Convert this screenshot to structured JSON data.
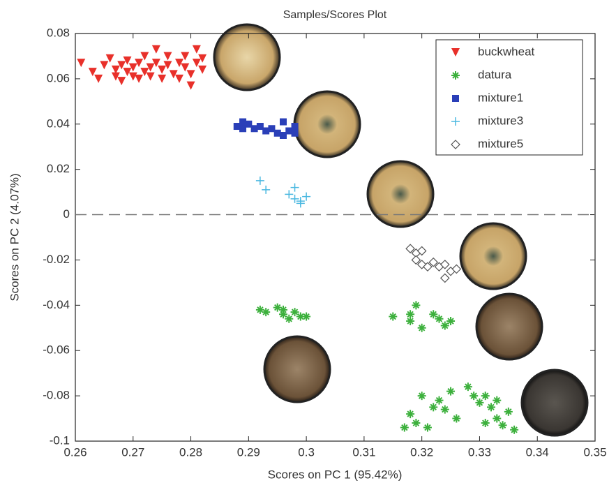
{
  "chart_data": {
    "type": "scatter",
    "title": "Samples/Scores Plot",
    "x_label": "Scores on PC 1 (95.42%)",
    "y_label": "Scores on PC 2 (4.07%)",
    "xlim": [
      0.26,
      0.35
    ],
    "ylim": [
      -0.1,
      0.08
    ],
    "xticks": [
      0.26,
      0.27,
      0.28,
      0.29,
      0.3,
      0.31,
      0.32,
      0.33,
      0.34,
      0.35
    ],
    "yticks": [
      -0.1,
      -0.08,
      -0.06,
      -0.04,
      -0.02,
      0,
      0.02,
      0.04,
      0.06,
      0.08
    ],
    "zero_line": true,
    "legend": "upper right",
    "series": [
      {
        "name": "buckwheat",
        "color": "#e8302a",
        "marker": "triangle-down",
        "x": [
          0.261,
          0.263,
          0.264,
          0.265,
          0.266,
          0.267,
          0.267,
          0.268,
          0.268,
          0.269,
          0.269,
          0.27,
          0.27,
          0.271,
          0.271,
          0.272,
          0.272,
          0.273,
          0.273,
          0.274,
          0.274,
          0.275,
          0.275,
          0.276,
          0.276,
          0.277,
          0.278,
          0.278,
          0.279,
          0.279,
          0.28,
          0.28,
          0.281,
          0.281,
          0.282,
          0.282
        ],
        "values": [
          0.067,
          0.063,
          0.06,
          0.066,
          0.069,
          0.064,
          0.061,
          0.066,
          0.059,
          0.063,
          0.068,
          0.061,
          0.065,
          0.067,
          0.06,
          0.063,
          0.07,
          0.065,
          0.061,
          0.073,
          0.067,
          0.064,
          0.06,
          0.07,
          0.066,
          0.062,
          0.06,
          0.067,
          0.065,
          0.07,
          0.062,
          0.057,
          0.073,
          0.067,
          0.069,
          0.064
        ]
      },
      {
        "name": "datura",
        "color": "#3cb03c",
        "marker": "star",
        "x": [
          0.292,
          0.293,
          0.295,
          0.296,
          0.297,
          0.298,
          0.299,
          0.3,
          0.296,
          0.315,
          0.318,
          0.319,
          0.32,
          0.322,
          0.323,
          0.324,
          0.325,
          0.318,
          0.318,
          0.319,
          0.32,
          0.321,
          0.322,
          0.323,
          0.324,
          0.325,
          0.326,
          0.328,
          0.329,
          0.33,
          0.331,
          0.332,
          0.333,
          0.333,
          0.334,
          0.335,
          0.336,
          0.331,
          0.317
        ],
        "values": [
          -0.042,
          -0.043,
          -0.041,
          -0.044,
          -0.046,
          -0.043,
          -0.045,
          -0.045,
          -0.042,
          -0.045,
          -0.047,
          -0.04,
          -0.05,
          -0.044,
          -0.046,
          -0.049,
          -0.047,
          -0.044,
          -0.088,
          -0.092,
          -0.08,
          -0.094,
          -0.085,
          -0.082,
          -0.086,
          -0.078,
          -0.09,
          -0.076,
          -0.08,
          -0.083,
          -0.08,
          -0.085,
          -0.082,
          -0.09,
          -0.093,
          -0.087,
          -0.095,
          -0.092,
          -0.094
        ]
      },
      {
        "name": "mixture1",
        "color": "#2a3fb8",
        "marker": "square",
        "x": [
          0.288,
          0.289,
          0.29,
          0.291,
          0.292,
          0.293,
          0.294,
          0.295,
          0.296,
          0.297,
          0.296,
          0.298,
          0.298,
          0.289
        ],
        "values": [
          0.039,
          0.038,
          0.04,
          0.038,
          0.039,
          0.037,
          0.038,
          0.036,
          0.035,
          0.037,
          0.041,
          0.039,
          0.036,
          0.041
        ]
      },
      {
        "name": "mixture3",
        "color": "#4ab8e0",
        "marker": "plus",
        "x": [
          0.292,
          0.293,
          0.297,
          0.298,
          0.298,
          0.299,
          0.3,
          0.299
        ],
        "values": [
          0.015,
          0.011,
          0.009,
          0.007,
          0.012,
          0.006,
          0.008,
          0.005
        ]
      },
      {
        "name": "mixture5",
        "color": "#555555",
        "marker": "diamond",
        "x": [
          0.318,
          0.319,
          0.319,
          0.32,
          0.32,
          0.321,
          0.322,
          0.323,
          0.324,
          0.324,
          0.325,
          0.326
        ],
        "values": [
          -0.015,
          -0.017,
          -0.02,
          -0.016,
          -0.022,
          -0.023,
          -0.021,
          -0.023,
          -0.022,
          -0.028,
          -0.025,
          -0.024
        ]
      }
    ]
  }
}
